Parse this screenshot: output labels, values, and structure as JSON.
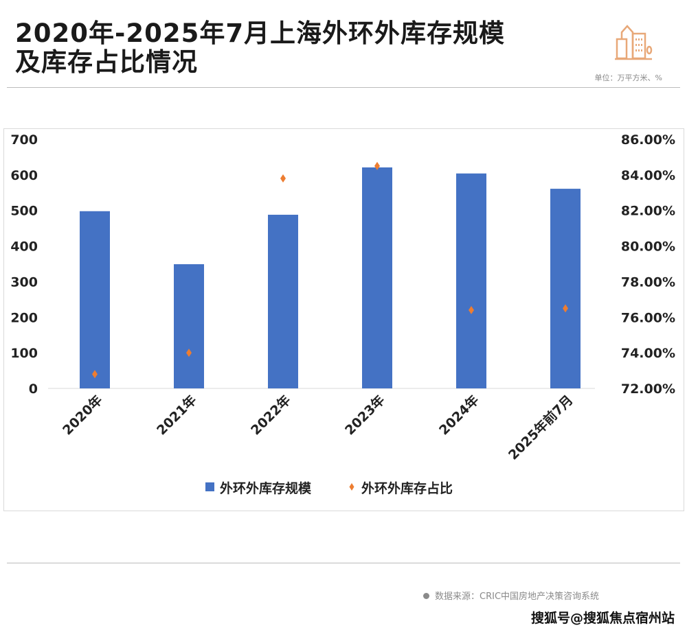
{
  "header": {
    "title_line1": "2020年-2025年7月上海外环外库存规模",
    "title_line2": "及库存占比情况",
    "unit": "单位：万平方米、%",
    "icon": "buildings-icon",
    "icon_color": "#e8a878"
  },
  "footer": {
    "source": "数据来源：CRIC中国房地产决策咨询系统",
    "watermark": "搜狐号@搜狐焦点宿州站"
  },
  "chart_data": {
    "type": "bar+scatter",
    "categories": [
      "2020年",
      "2021年",
      "2022年",
      "2023年",
      "2024年",
      "2025年前7月"
    ],
    "series": [
      {
        "name": "外环外库存规模",
        "type": "bar",
        "axis": "left",
        "color": "#4472c4",
        "values": [
          498,
          349,
          488,
          621,
          604,
          561
        ]
      },
      {
        "name": "外环外库存占比",
        "type": "scatter",
        "axis": "right",
        "color": "#ed7d31",
        "values": [
          72.8,
          74.0,
          83.8,
          84.5,
          76.4,
          76.5
        ]
      }
    ],
    "y_left": {
      "ylim": [
        0,
        700
      ],
      "ticks": [
        "0",
        "100",
        "200",
        "300",
        "400",
        "500",
        "600",
        "700"
      ]
    },
    "y_right": {
      "ylim": [
        72,
        86
      ],
      "ticks": [
        "72.00%",
        "74.00%",
        "76.00%",
        "78.00%",
        "80.00%",
        "82.00%",
        "84.00%",
        "86.00%"
      ]
    },
    "grid": false,
    "legend": "bottom"
  }
}
